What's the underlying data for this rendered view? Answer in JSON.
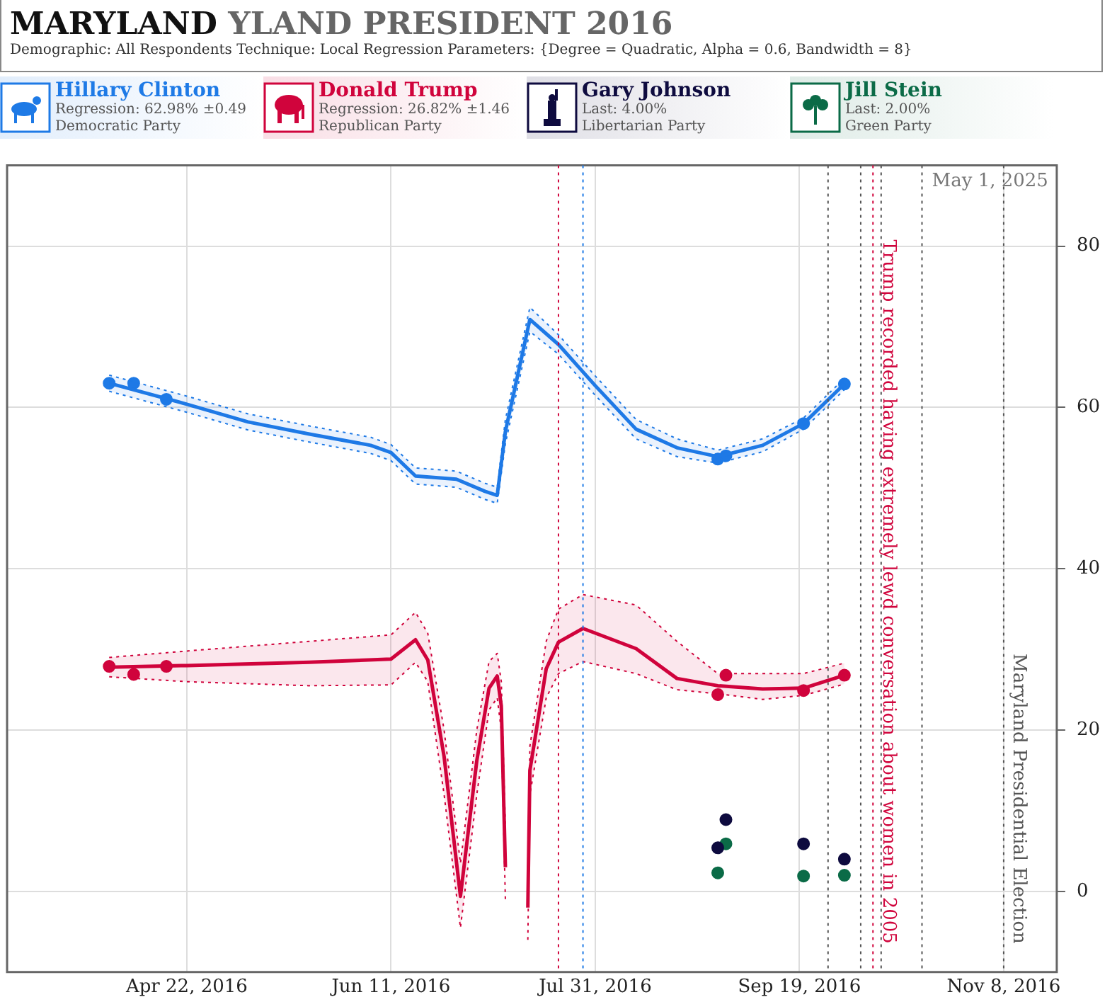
{
  "chart_data": {
    "type": "scatter",
    "title": "MARYLAND YLAND PRESIDENT 2016",
    "subtitle": "Demographic: All Respondents   Technique: Local Regression   Parameters: {Degree = Quadratic, Alpha = 0.6, Bandwidth = 8}",
    "annotations": [
      "May 1, 2025",
      "Regression: 62.98% ±0.49",
      "Democratic Party",
      "Regression: 26.82% ±1.46",
      "Republican Party",
      "Last: 4.00%",
      "Libertarian Party",
      "Last: 2.00%",
      "Green Party"
    ],
    "xlim": [
      "2016-03-09",
      "2016-11-21"
    ],
    "xticks": [
      {
        "value": "2016-04-22",
        "label": "Apr 22, 2016"
      },
      {
        "value": "2016-06-11",
        "label": "Jun 11, 2016"
      },
      {
        "value": "2016-07-31",
        "label": "Jul 31, 2016"
      },
      {
        "value": "2016-09-19",
        "label": "Sep 19, 2016"
      },
      {
        "value": "2016-11-08",
        "label": "Nov 8, 2016"
      }
    ],
    "ylim": [
      -10,
      90
    ],
    "yticks": [
      0,
      20,
      40,
      60,
      80
    ],
    "grid": true,
    "legend": "top",
    "marker": "circle",
    "ref_lines": [
      {
        "axis": "x",
        "value": "2016-07-22",
        "color": "#d0043c",
        "line_style": "dotted"
      },
      {
        "axis": "x",
        "value": "2016-07-28",
        "color": "#1e7ae6",
        "line_style": "dotted"
      },
      {
        "axis": "x",
        "value": "2016-09-26",
        "color": "#555555",
        "line_style": "dotted"
      },
      {
        "axis": "x",
        "value": "2016-10-04",
        "color": "#555555",
        "line_style": "dotted"
      },
      {
        "axis": "x",
        "value": "2016-10-07",
        "color": "#d0043c",
        "line_style": "dotted",
        "label": "Trump recorded having extremely lewd conversation about women in 2005"
      },
      {
        "axis": "x",
        "value": "2016-10-09",
        "color": "#555555",
        "line_style": "dotted"
      },
      {
        "axis": "x",
        "value": "2016-10-19",
        "color": "#555555",
        "line_style": "dotted"
      },
      {
        "axis": "x",
        "value": "2016-11-08",
        "color": "#555555",
        "line_style": "dotted",
        "label": "Maryland Presidential Election"
      }
    ],
    "series": [
      {
        "type": "line",
        "color": "#1e7ae6",
        "line_style": "solid",
        "marker": "none",
        "x": [
          "2016-04-03",
          "2016-04-22",
          "2016-05-07",
          "2016-05-22",
          "2016-06-06",
          "2016-06-11",
          "2016-06-17",
          "2016-06-27",
          "2016-07-04",
          "2016-07-07",
          "2016-07-09",
          "2016-07-15",
          "2016-07-22",
          "2016-07-31",
          "2016-08-10",
          "2016-08-20",
          "2016-08-30",
          "2016-09-10",
          "2016-09-20",
          "2016-09-30"
        ],
        "values": [
          63.0,
          60.4,
          58.2,
          56.7,
          55.3,
          54.4,
          51.5,
          51.1,
          49.6,
          49.1,
          57.0,
          70.9,
          67.8,
          62.7,
          57.3,
          55.0,
          53.9,
          55.3,
          58.0,
          62.9
        ],
        "lower": [
          62.0,
          59.4,
          57.2,
          55.7,
          54.3,
          53.4,
          50.5,
          50.1,
          48.6,
          48.1,
          55.5,
          69.4,
          66.6,
          61.5,
          56.1,
          53.9,
          53.1,
          54.5,
          57.3,
          62.2
        ],
        "upper": [
          64.0,
          61.4,
          59.2,
          57.7,
          56.3,
          55.4,
          52.5,
          52.1,
          50.6,
          50.1,
          58.5,
          72.4,
          69.0,
          63.9,
          58.5,
          56.1,
          54.7,
          56.1,
          58.7,
          63.6
        ]
      },
      {
        "type": "line",
        "color": "#d0043c",
        "line_style": "solid",
        "marker": "none",
        "x": [
          "2016-04-03",
          "2016-04-22",
          "2016-05-22",
          "2016-06-11",
          "2016-06-17",
          "2016-06-20",
          "2016-06-24",
          "2016-06-28",
          "2016-07-02",
          "2016-07-05",
          "2016-07-07",
          "2016-07-08",
          "2016-07-09",
          "2016-07-12",
          "2016-07-14T12:00",
          "2016-07-15",
          "2016-07-19",
          "2016-07-22",
          "2016-07-28",
          "2016-08-10",
          "2016-08-20",
          "2016-08-30",
          "2016-09-10",
          "2016-09-20",
          "2016-09-30"
        ],
        "values": [
          27.8,
          28.0,
          28.4,
          28.8,
          31.2,
          28.7,
          16.7,
          -0.6,
          16.2,
          25.2,
          26.7,
          23.0,
          3.0,
          null,
          -2.0,
          15.0,
          27.6,
          30.9,
          32.6,
          30.1,
          26.4,
          25.5,
          25.1,
          25.2,
          26.8
        ],
        "lower": [
          26.6,
          26.0,
          25.5,
          25.6,
          28.4,
          26.0,
          12.0,
          -4.5,
          12.0,
          22.5,
          24.0,
          20.0,
          -1.0,
          null,
          -6.0,
          12.0,
          24.0,
          27.0,
          28.5,
          27.0,
          25.0,
          24.5,
          23.8,
          24.3,
          25.7
        ],
        "upper": [
          29.0,
          29.8,
          31.0,
          31.8,
          34.6,
          32.0,
          20.0,
          3.5,
          20.0,
          28.5,
          29.5,
          26.0,
          8.0,
          null,
          3.0,
          18.0,
          31.0,
          35.0,
          36.8,
          35.5,
          31.0,
          27.0,
          27.0,
          27.0,
          28.3
        ]
      },
      {
        "type": "line",
        "color": "#1e7ae6",
        "line_style": "dotted",
        "marker": "none",
        "x": [
          "2016-04-03",
          "2016-04-22",
          "2016-05-07",
          "2016-05-22",
          "2016-06-06",
          "2016-06-11",
          "2016-06-17",
          "2016-06-27",
          "2016-07-04",
          "2016-07-07",
          "2016-07-09",
          "2016-07-15",
          "2016-07-22",
          "2016-07-31",
          "2016-08-10",
          "2016-08-20",
          "2016-08-30",
          "2016-09-10",
          "2016-09-20",
          "2016-09-30"
        ],
        "values": [
          62.0,
          59.4,
          57.2,
          55.7,
          54.3,
          53.4,
          50.5,
          50.1,
          48.6,
          48.1,
          55.5,
          69.4,
          66.6,
          61.5,
          56.1,
          53.9,
          53.1,
          54.5,
          57.3,
          62.2
        ]
      },
      {
        "type": "line",
        "color": "#1e7ae6",
        "line_style": "dotted",
        "marker": "none",
        "x": [
          "2016-04-03",
          "2016-04-22",
          "2016-05-07",
          "2016-05-22",
          "2016-06-06",
          "2016-06-11",
          "2016-06-17",
          "2016-06-27",
          "2016-07-04",
          "2016-07-07",
          "2016-07-09",
          "2016-07-15",
          "2016-07-22",
          "2016-07-31",
          "2016-08-10",
          "2016-08-20",
          "2016-08-30",
          "2016-09-10",
          "2016-09-20",
          "2016-09-30"
        ],
        "values": [
          64.0,
          61.4,
          59.2,
          57.7,
          56.3,
          55.4,
          52.5,
          52.1,
          50.6,
          50.1,
          58.5,
          72.4,
          69.0,
          63.9,
          58.5,
          56.1,
          54.7,
          56.1,
          58.7,
          63.6
        ]
      },
      {
        "type": "line",
        "color": "#d0043c",
        "line_style": "dotted",
        "marker": "none",
        "x": [
          "2016-04-03",
          "2016-04-22",
          "2016-05-22",
          "2016-06-11",
          "2016-06-17",
          "2016-06-20",
          "2016-06-24",
          "2016-06-28",
          "2016-07-02",
          "2016-07-05",
          "2016-07-07",
          "2016-07-08",
          "2016-07-09",
          "2016-07-12",
          "2016-07-14T12:00",
          "2016-07-15",
          "2016-07-19",
          "2016-07-22",
          "2016-07-28",
          "2016-08-10",
          "2016-08-20",
          "2016-08-30",
          "2016-09-10",
          "2016-09-20",
          "2016-09-30"
        ],
        "values": [
          26.6,
          26.0,
          25.5,
          25.6,
          28.4,
          26.0,
          12.0,
          -4.5,
          12.0,
          22.5,
          24.0,
          20.0,
          -1.0,
          null,
          -6.0,
          12.0,
          24.0,
          27.0,
          28.5,
          27.0,
          25.0,
          24.5,
          23.8,
          24.3,
          25.7
        ]
      },
      {
        "type": "line",
        "color": "#d0043c",
        "line_style": "dotted",
        "marker": "none",
        "x": [
          "2016-04-03",
          "2016-04-22",
          "2016-05-22",
          "2016-06-11",
          "2016-06-17",
          "2016-06-20",
          "2016-06-24",
          "2016-06-28",
          "2016-07-02",
          "2016-07-05",
          "2016-07-07",
          "2016-07-08",
          "2016-07-09",
          "2016-07-12",
          "2016-07-14T12:00",
          "2016-07-15",
          "2016-07-19",
          "2016-07-22",
          "2016-07-28",
          "2016-08-10",
          "2016-08-20",
          "2016-08-30",
          "2016-09-10",
          "2016-09-20",
          "2016-09-30"
        ],
        "values": [
          29.0,
          29.8,
          31.0,
          31.8,
          34.6,
          32.0,
          20.0,
          3.5,
          20.0,
          28.5,
          29.5,
          26.0,
          8.0,
          null,
          3.0,
          18.0,
          31.0,
          35.0,
          36.8,
          35.5,
          31.0,
          27.0,
          27.0,
          27.0,
          28.3
        ]
      },
      {
        "type": "scatter",
        "name": "Hillary Clinton",
        "color": "#1e7ae6",
        "x": [
          "2016-04-03",
          "2016-04-09",
          "2016-04-17",
          "2016-08-30",
          "2016-09-01",
          "2016-09-20",
          "2016-09-30"
        ],
        "values": [
          63.0,
          63.0,
          61.0,
          53.6,
          54.0,
          58.0,
          62.9
        ]
      },
      {
        "type": "scatter",
        "name": "Donald Trump",
        "color": "#d0043c",
        "x": [
          "2016-04-03",
          "2016-04-09",
          "2016-04-17",
          "2016-08-30",
          "2016-09-01",
          "2016-09-20",
          "2016-09-30"
        ],
        "values": [
          27.9,
          26.9,
          27.9,
          24.4,
          26.8,
          24.9,
          26.8
        ]
      },
      {
        "type": "scatter",
        "name": "Gary Johnson",
        "color": "#0e0b3f",
        "x": [
          "2016-08-30",
          "2016-09-01",
          "2016-09-20",
          "2016-09-30"
        ],
        "values": [
          5.4,
          8.9,
          5.9,
          4.0
        ]
      },
      {
        "type": "scatter",
        "name": "Jill Stein",
        "color": "#0b6b47",
        "x": [
          "2016-08-30",
          "2016-09-01",
          "2016-09-20",
          "2016-09-30"
        ],
        "values": [
          2.3,
          5.9,
          1.9,
          2.0
        ]
      }
    ]
  }
}
